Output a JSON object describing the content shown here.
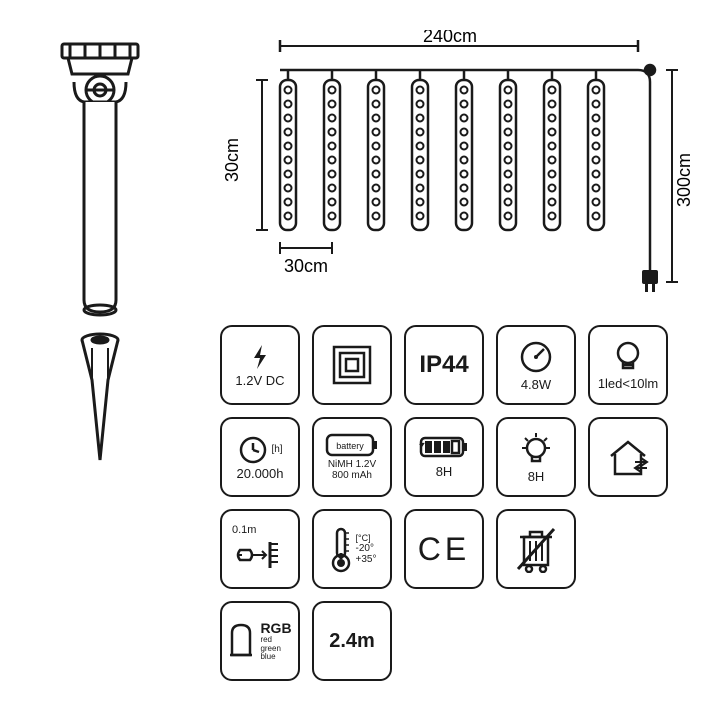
{
  "dimensions": {
    "top_width": "240cm",
    "tube_height": "30cm",
    "tube_spacing": "30cm",
    "cable_length": "300cm",
    "tube_count": 8,
    "leds_per_tube": 10
  },
  "colors": {
    "stroke": "#1a1a1a",
    "bg": "#ffffff"
  },
  "spec_rows": [
    [
      {
        "kind": "voltage",
        "main": "1.2V DC",
        "icon": "bolt"
      },
      {
        "kind": "class3",
        "icon": "triple-square"
      },
      {
        "kind": "ip",
        "main": "IP44"
      },
      {
        "kind": "power",
        "main": "4.8W",
        "icon": "gauge"
      },
      {
        "kind": "lumen",
        "main": "1led<10lm",
        "icon": "bulb"
      }
    ],
    [
      {
        "kind": "hours",
        "main": "20.000h",
        "icon": "clock",
        "sup": "[h]"
      },
      {
        "kind": "battery",
        "main": "NiMH 1.2V",
        "sub": "800 mAh",
        "icon": "battery-label"
      },
      {
        "kind": "charge",
        "main": "8H",
        "icon": "battery-charge"
      },
      {
        "kind": "runtime",
        "main": "8H",
        "icon": "bulb-rays"
      },
      {
        "kind": "indoor-outdoor",
        "icon": "house"
      }
    ],
    [
      {
        "kind": "sensor",
        "main": "0.1m",
        "icon": "sensor"
      },
      {
        "kind": "temp",
        "main": "-20°",
        "sub": "+35°",
        "icon": "thermo",
        "sup": "[°C]"
      },
      {
        "kind": "ce",
        "main": "CE"
      },
      {
        "kind": "weee",
        "icon": "bin-cross"
      }
    ],
    [
      {
        "kind": "rgb",
        "main": "RGB",
        "sub": "red\ngreen\nblue",
        "icon": "led-shape"
      },
      {
        "kind": "length",
        "main": "2.4m"
      }
    ]
  ]
}
